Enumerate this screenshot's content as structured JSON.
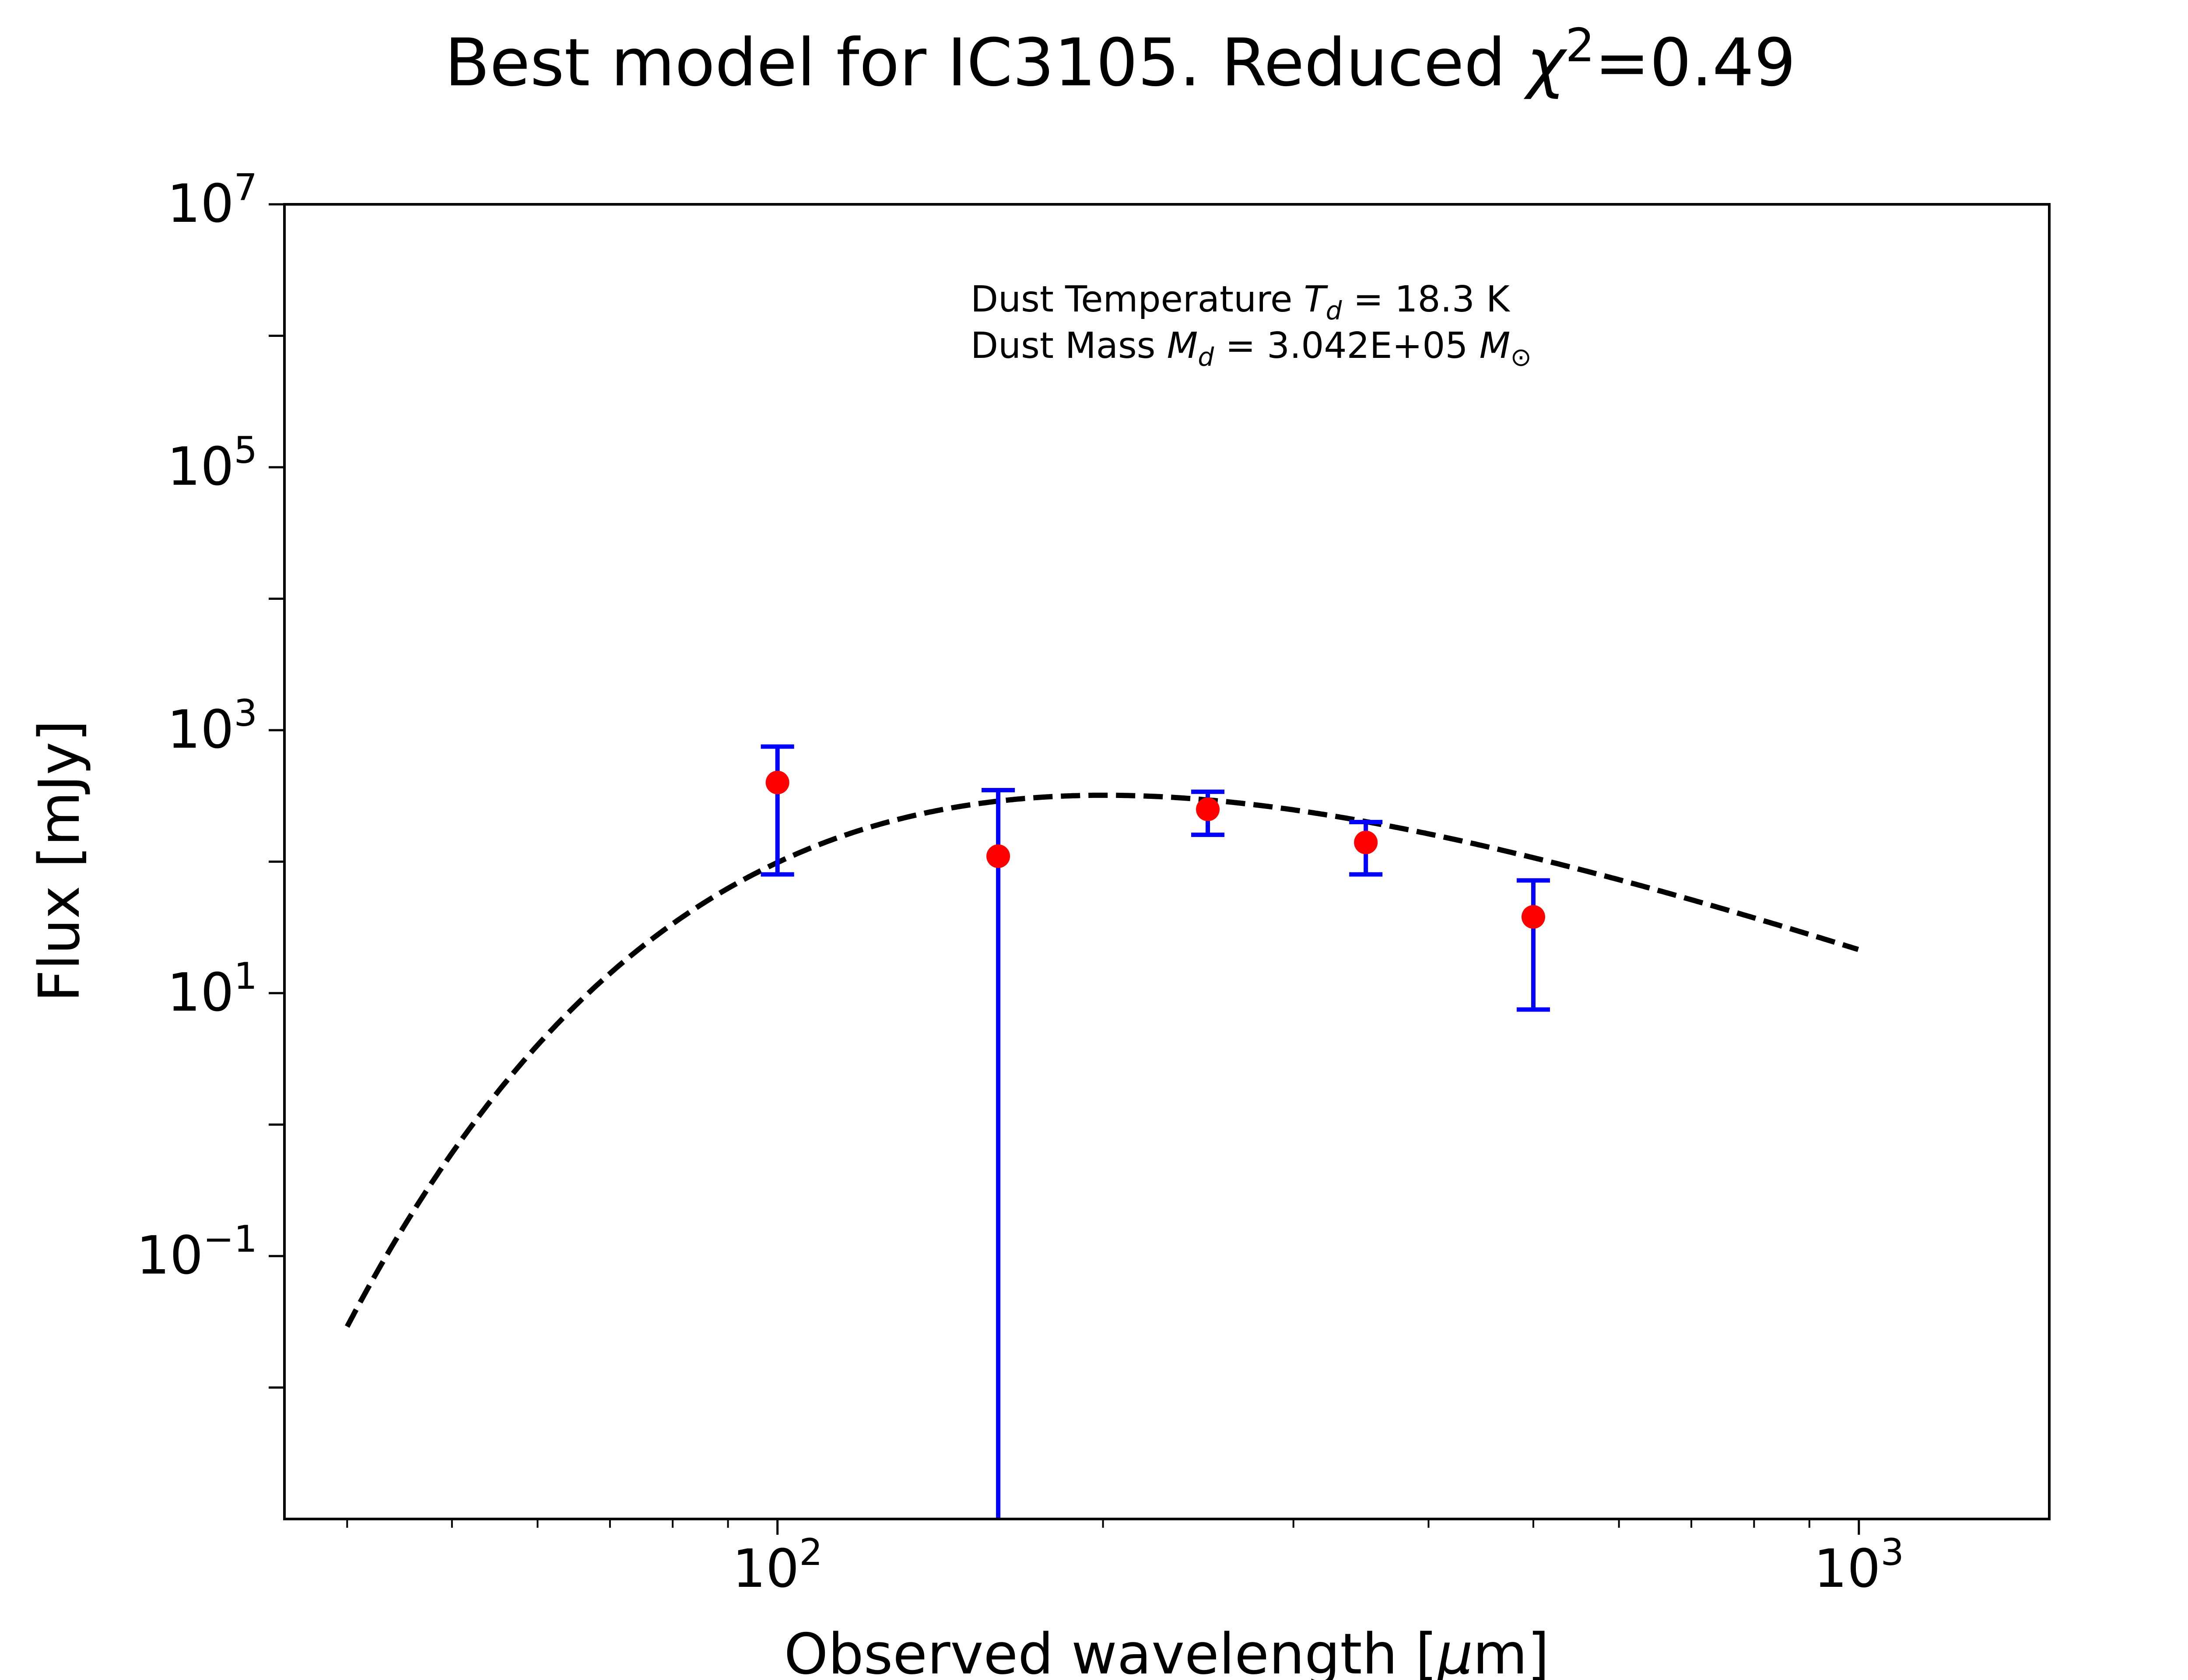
{
  "chart_data": {
    "type": "scatter",
    "title": "Best model for IC3105. Reduced",
    "title_chi": "χ",
    "title_chi_sup": "2",
    "title_value": "=0.49",
    "xlabel": "Observed wavelength [",
    "xlabel_mu": "μ",
    "xlabel_end": "m]",
    "ylabel": "Flux [mJy]",
    "xscale": "log",
    "yscale": "log",
    "xlim": [
      35,
      1500
    ],
    "ylim": [
      0.001,
      10000000
    ],
    "x_ticks": [
      {
        "value": 100,
        "base": "10",
        "exp": "2"
      },
      {
        "value": 1000,
        "base": "10",
        "exp": "3"
      }
    ],
    "y_ticks": [
      {
        "value": 0.1,
        "base": "10",
        "exp": "−1"
      },
      {
        "value": 10,
        "base": "10",
        "exp": "1"
      },
      {
        "value": 1000,
        "base": "10",
        "exp": "3"
      },
      {
        "value": 100000,
        "base": "10",
        "exp": "5"
      },
      {
        "value": 10000000,
        "base": "10",
        "exp": "7"
      }
    ],
    "annotation": {
      "line1_prefix": "Dust Temperature ",
      "line1_sym": "T",
      "line1_sub": "d",
      "line1_value": " = 18.3 K",
      "line2_prefix": "Dust Mass ",
      "line2_sym": "M",
      "line2_sub": "d",
      "line2_value": " = 3.042E+05 ",
      "line2_unit_sym": "M",
      "line2_unit_sub": "⊙"
    },
    "series": [
      {
        "kind": "observations",
        "color": "#ff0000",
        "errorbar_color": "#0000ff",
        "points": [
          {
            "x": 100,
            "y": 400,
            "ylo": 80,
            "yhi": 750
          },
          {
            "x": 160,
            "y": 110,
            "ylo": 0.001,
            "yhi": 350
          },
          {
            "x": 250,
            "y": 250,
            "ylo": 160,
            "yhi": 340
          },
          {
            "x": 350,
            "y": 140,
            "ylo": 80,
            "yhi": 200
          },
          {
            "x": 500,
            "y": 38,
            "ylo": 7.5,
            "yhi": 72
          }
        ]
      },
      {
        "kind": "model",
        "color": "#000000",
        "linestyle": "dashed",
        "temperature_K": 18.3,
        "peak_y": 320,
        "x_range": [
          40,
          1000
        ]
      }
    ]
  }
}
